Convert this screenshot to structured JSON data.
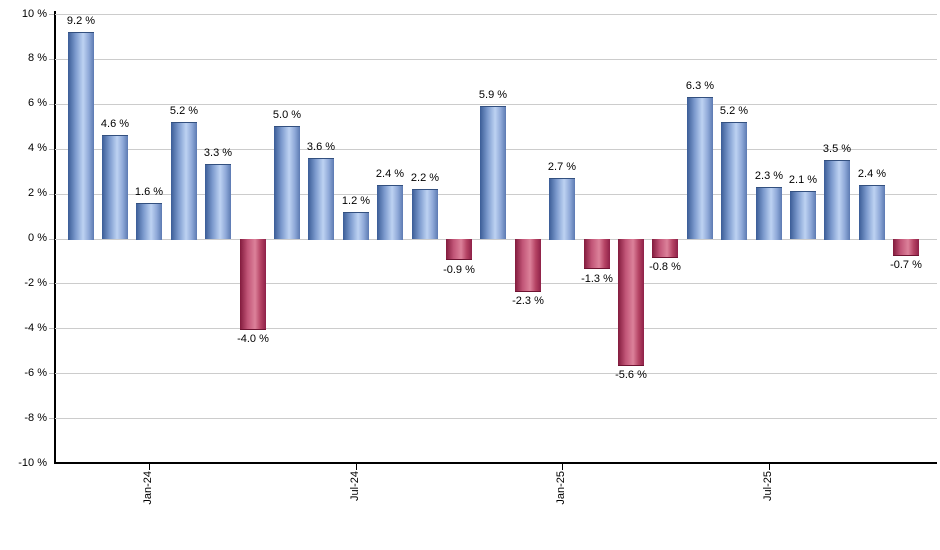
{
  "chart_data": {
    "type": "bar",
    "title": "",
    "xlabel": "",
    "ylabel": "",
    "ylim": [
      -10,
      10
    ],
    "y_step": 2,
    "grid": true,
    "legend": "none",
    "y_ticks": [
      10,
      8,
      6,
      4,
      2,
      0,
      -2,
      -4,
      -6,
      -8,
      -10
    ],
    "y_tick_labels": [
      "10 %",
      "8 %",
      "6 %",
      "4 %",
      "2 %",
      "0 %",
      "-2 %",
      "-4 %",
      "-6 %",
      "-8 %",
      "-10 %"
    ],
    "x_ticks": [
      {
        "bar_index": 2,
        "label": "Jan-24"
      },
      {
        "bar_index": 8,
        "label": "Jul-24"
      },
      {
        "bar_index": 14,
        "label": "Jan-25"
      },
      {
        "bar_index": 20,
        "label": "Jul-25"
      }
    ],
    "bars": [
      {
        "value": 9.2,
        "label": "9.2 %"
      },
      {
        "value": 4.6,
        "label": "4.6 %"
      },
      {
        "value": 1.6,
        "label": "1.6 %"
      },
      {
        "value": 5.2,
        "label": "5.2 %"
      },
      {
        "value": 3.3,
        "label": "3.3 %"
      },
      {
        "value": -4.0,
        "label": "-4.0 %"
      },
      {
        "value": 5.0,
        "label": "5.0 %"
      },
      {
        "value": 3.6,
        "label": "3.6 %"
      },
      {
        "value": 1.2,
        "label": "1.2 %"
      },
      {
        "value": 2.4,
        "label": "2.4 %"
      },
      {
        "value": 2.2,
        "label": "2.2 %"
      },
      {
        "value": -0.9,
        "label": "-0.9 %"
      },
      {
        "value": 5.9,
        "label": "5.9 %"
      },
      {
        "value": -2.3,
        "label": "-2.3 %"
      },
      {
        "value": 2.7,
        "label": "2.7 %"
      },
      {
        "value": -1.3,
        "label": "-1.3 %"
      },
      {
        "value": -5.6,
        "label": "-5.6 %"
      },
      {
        "value": -0.8,
        "label": "-0.8 %"
      },
      {
        "value": 6.3,
        "label": "6.3 %"
      },
      {
        "value": 5.2,
        "label": "5.2 %"
      },
      {
        "value": 2.3,
        "label": "2.3 %"
      },
      {
        "value": 2.1,
        "label": "2.1 %"
      },
      {
        "value": 3.5,
        "label": "3.5 %"
      },
      {
        "value": 2.4,
        "label": "2.4 %"
      },
      {
        "value": -0.7,
        "label": "-0.7 %"
      }
    ],
    "colors": {
      "positive_dark": "#3a5c96",
      "positive_light": "#bdd2f2",
      "positive_mid": "#5c7ab2",
      "negative_dark": "#821a3c",
      "negative_light": "#dc819a",
      "negative_mid": "#8e2148",
      "gridline": "#cccccc",
      "axis": "#000000",
      "text": "#000000",
      "background": "#ffffff"
    }
  }
}
